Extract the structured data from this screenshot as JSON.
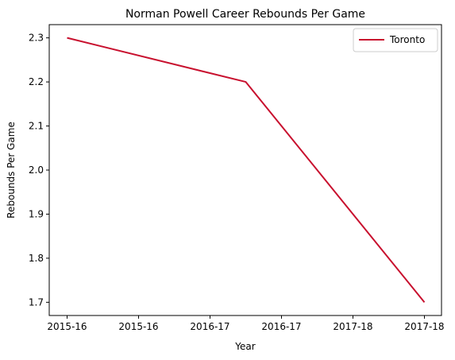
{
  "chart_data": {
    "type": "line",
    "title": "Norman Powell Career Rebounds Per Game",
    "xlabel": "Year",
    "ylabel": "Rebounds Per Game",
    "x_tick_labels": [
      "2015-16",
      "2015-16",
      "2016-17",
      "2016-17",
      "2017-18",
      "2017-18"
    ],
    "y_ticks": [
      "1.7",
      "1.8",
      "1.9",
      "2.0",
      "2.1",
      "2.2",
      "2.3"
    ],
    "ylim": [
      1.67,
      2.33
    ],
    "series": [
      {
        "name": "Toronto",
        "color": "#c8102e",
        "points": [
          {
            "x": "2015-16",
            "y": 2.3
          },
          {
            "x": "2016-17",
            "y": 2.2
          },
          {
            "x": "2017-18",
            "y": 1.7
          }
        ]
      }
    ],
    "legend_position": "top-right",
    "grid": false
  }
}
